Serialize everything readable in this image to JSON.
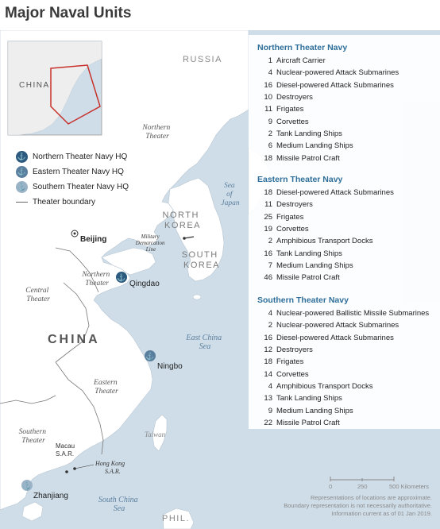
{
  "title": "Major Naval Units",
  "map_labels": {
    "russia": "RUSSIA",
    "china": "CHINA",
    "north_korea": "NORTH KOREA",
    "south_korea": "SOUTH KOREA",
    "sea_of_japan": "Sea of Japan",
    "east_china_sea": "East China Sea",
    "south_china_sea": "South China Sea",
    "taiwan": "Taiwan",
    "phil": "PHIL.",
    "dmz": "Military Demarcation Line",
    "macau": "Macau S.A.R.",
    "hong_kong": "Hong Kong S.A.R.",
    "northern_theater_top": "Northern Theater",
    "northern_theater_mid": "Northern Theater",
    "central_theater": "Central Theater",
    "eastern_theater": "Eastern Theater",
    "southern_theater": "Southern Theater",
    "inset_china": "CHINA"
  },
  "cities": {
    "beijing": "Beijing",
    "qingdao": "Qingdao",
    "ningbo": "Ningbo",
    "zhanjiang": "Zhanjiang"
  },
  "legend": {
    "northern_hq": "Northern Theater Navy HQ",
    "eastern_hq": "Eastern Theater Navy HQ",
    "southern_hq": "Southern Theater Navy HQ",
    "boundary": "Theater boundary"
  },
  "fleets": {
    "northern": {
      "title": "Northern Theater Navy",
      "units": [
        {
          "count": "1",
          "name": "Aircraft Carrier"
        },
        {
          "count": "4",
          "name": "Nuclear-powered Attack Submarines"
        },
        {
          "count": "16",
          "name": "Diesel-powered Attack Submarines"
        },
        {
          "count": "10",
          "name": "Destroyers"
        },
        {
          "count": "11",
          "name": "Frigates"
        },
        {
          "count": "9",
          "name": "Corvettes"
        },
        {
          "count": "2",
          "name": "Tank Landing Ships"
        },
        {
          "count": "6",
          "name": "Medium Landing Ships"
        },
        {
          "count": "18",
          "name": "Missile Patrol Craft"
        }
      ]
    },
    "eastern": {
      "title": "Eastern Theater Navy",
      "units": [
        {
          "count": "18",
          "name": "Diesel-powered Attack Submarines"
        },
        {
          "count": "11",
          "name": "Destroyers"
        },
        {
          "count": "25",
          "name": "Frigates"
        },
        {
          "count": "19",
          "name": "Corvettes"
        },
        {
          "count": "2",
          "name": "Amphibious Transport Docks"
        },
        {
          "count": "16",
          "name": "Tank Landing Ships"
        },
        {
          "count": "7",
          "name": "Medium Landing Ships"
        },
        {
          "count": "46",
          "name": "Missile Patrol Craft"
        }
      ]
    },
    "southern": {
      "title": "Southern Theater Navy",
      "units": [
        {
          "count": "4",
          "name": "Nuclear-powered Ballistic Missile Submarines"
        },
        {
          "count": "2",
          "name": "Nuclear-powered Attack Submarines"
        },
        {
          "count": "16",
          "name": "Diesel-powered Attack Submarines"
        },
        {
          "count": "12",
          "name": "Destroyers"
        },
        {
          "count": "18",
          "name": "Frigates"
        },
        {
          "count": "14",
          "name": "Corvettes"
        },
        {
          "count": "4",
          "name": "Amphibious Transport Docks"
        },
        {
          "count": "13",
          "name": "Tank Landing Ships"
        },
        {
          "count": "9",
          "name": "Medium Landing Ships"
        },
        {
          "count": "22",
          "name": "Missile Patrol Craft"
        }
      ]
    }
  },
  "scale": {
    "zero": "0",
    "mid": "250",
    "end": "500 Kilometers"
  },
  "notes": [
    "Representations of locations are approximate.",
    "Boundary representation is not necessarily authoritative.",
    "Information current as of 01 Jan 2019."
  ],
  "colors": {
    "sea": "#cfdde8",
    "land": "#ffffff",
    "northern_hq": "#2c5a7e",
    "eastern_hq": "#5a7f9e",
    "southern_hq": "#9ab3c7",
    "fleet_title": "#2f6f9a"
  }
}
